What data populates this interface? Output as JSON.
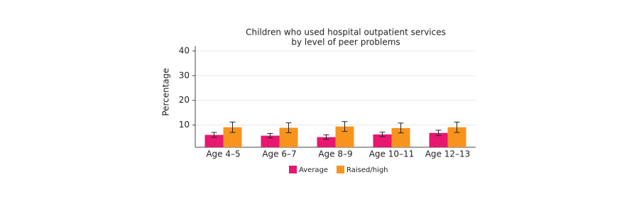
{
  "chart_data": {
    "type": "bar",
    "title": [
      "Children who used hospital outpatient services",
      "by level of peer problems"
    ],
    "y_label": "Percentage",
    "categories": [
      "Age 4–5",
      "Age 6–7",
      "Age 8–9",
      "Age 10–11",
      "Age 12–13"
    ],
    "series": [
      {
        "name": "Average",
        "color": "#e8176f",
        "values": [
          6.0,
          5.7,
          5.1,
          6.2,
          6.8
        ],
        "errors": [
          1.0,
          0.9,
          0.9,
          0.9,
          1.1
        ]
      },
      {
        "name": "Raised/high",
        "color": "#f7941d",
        "values": [
          9.1,
          8.9,
          9.4,
          8.8,
          9.1
        ],
        "errors": [
          2.1,
          2.0,
          2.0,
          2.0,
          2.1
        ]
      }
    ],
    "ylim": [
      1,
      42
    ],
    "yticks": [
      10,
      20,
      30,
      40
    ],
    "grid": true
  }
}
